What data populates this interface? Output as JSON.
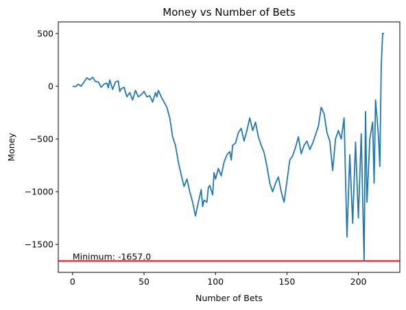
{
  "chart_data": {
    "type": "line",
    "title": "Money vs Number of Bets",
    "xlabel": "Number of Bets",
    "ylabel": "Money",
    "xlim": [
      -10,
      229
    ],
    "ylim": [
      -1765,
      610
    ],
    "xticks": [
      0,
      50,
      100,
      150,
      200
    ],
    "xtick_labels": [
      "0",
      "50",
      "100",
      "150",
      "200"
    ],
    "yticks": [
      500,
      0,
      -500,
      -1000,
      -1500
    ],
    "ytick_labels": [
      "500",
      "0",
      "−500",
      "−1000",
      "−1500"
    ],
    "grid": false,
    "legend": "none",
    "line_color": "#1f77b4",
    "hline": {
      "value": -1657,
      "color": "#ff0000"
    },
    "annotation": {
      "text": "Minimum: -1657.0",
      "x": 0,
      "y": -1657
    },
    "series": [
      {
        "x": [
          0,
          2,
          4,
          6,
          8,
          10,
          12,
          14,
          16,
          18,
          20,
          22,
          24,
          25,
          26,
          28,
          30,
          32,
          33,
          34,
          36,
          38,
          40,
          42,
          44,
          46,
          48,
          50,
          52,
          54,
          56,
          58,
          59,
          60,
          62,
          64,
          66,
          68,
          70,
          72,
          74,
          76,
          78,
          80,
          82,
          84,
          86,
          88,
          90,
          91,
          92,
          94,
          95,
          96,
          98,
          99,
          100,
          102,
          104,
          106,
          108,
          110,
          111,
          112,
          114,
          116,
          118,
          120,
          122,
          124,
          125,
          126,
          128,
          130,
          132,
          134,
          136,
          138,
          140,
          142,
          144,
          146,
          148,
          150,
          152,
          154,
          156,
          158,
          160,
          162,
          164,
          166,
          168,
          170,
          172,
          174,
          176,
          178,
          180,
          182,
          184,
          186,
          188,
          190,
          192,
          194,
          196,
          198,
          200,
          202,
          204,
          205,
          206,
          208,
          210,
          211,
          212,
          214,
          215,
          216,
          217,
          218
        ],
        "y": [
          0,
          -5,
          20,
          0,
          40,
          80,
          60,
          85,
          45,
          40,
          -10,
          20,
          30,
          -15,
          60,
          -30,
          40,
          50,
          -50,
          -25,
          -10,
          -100,
          -60,
          -130,
          -40,
          -100,
          -80,
          -50,
          -100,
          -90,
          -150,
          -60,
          -100,
          -40,
          -100,
          -150,
          -200,
          -300,
          -480,
          -560,
          -720,
          -840,
          -950,
          -880,
          -1000,
          -1100,
          -1230,
          -1100,
          -980,
          -1140,
          -1080,
          -1100,
          -960,
          -940,
          -1030,
          -820,
          -880,
          -780,
          -850,
          -720,
          -650,
          -620,
          -700,
          -560,
          -540,
          -440,
          -400,
          -520,
          -420,
          -300,
          -360,
          -420,
          -340,
          -480,
          -560,
          -630,
          -760,
          -920,
          -1000,
          -920,
          -860,
          -1000,
          -1100,
          -900,
          -700,
          -660,
          -580,
          -480,
          -640,
          -560,
          -520,
          -600,
          -540,
          -460,
          -380,
          -200,
          -260,
          -440,
          -520,
          -800,
          -500,
          -420,
          -500,
          -300,
          -1430,
          -650,
          -1300,
          -530,
          -1250,
          -450,
          -1657,
          -240,
          -1100,
          -500,
          -340,
          -920,
          -130,
          -460,
          -760,
          200,
          500,
          500
        ]
      }
    ]
  }
}
